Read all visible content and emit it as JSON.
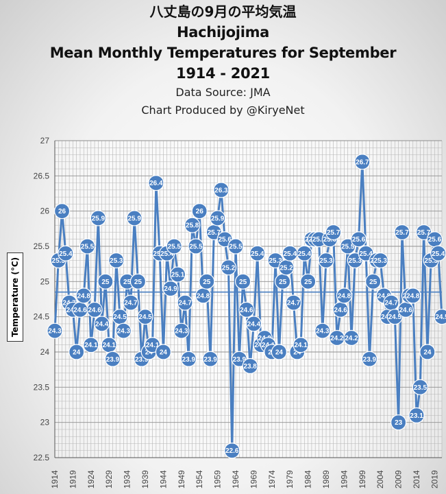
{
  "titles": {
    "japanese": "八丈島の9月の平均気温",
    "station": "Hachijojima",
    "main": "Mean Monthly Temperatures  for September",
    "years": "1914 - 2021",
    "source": "Data Source: JMA",
    "credit": "Chart Produced by @KiryeNet"
  },
  "colors": {
    "series": "#4a7fc1",
    "grid": "#b5b5b5",
    "axis": "#555555"
  },
  "chart_data": {
    "type": "line",
    "title": "Hachijojima Mean Monthly Temperatures for September",
    "ylabel": "Temperature (°C)",
    "xlabel": "",
    "ylim": [
      22.5,
      27
    ],
    "yticks": [
      "22.5",
      "23",
      "23.5",
      "24",
      "24.5",
      "25",
      "25.5",
      "26",
      "26.5",
      "27"
    ],
    "xtick_labels": [
      "1914",
      "1919",
      "1924",
      "1929",
      "1934",
      "1939",
      "1944",
      "1949",
      "1954",
      "1959",
      "1964",
      "1969",
      "1974",
      "1979",
      "1984",
      "1989",
      "1994",
      "1999",
      "2004",
      "2009",
      "2014",
      "2019"
    ],
    "grid": true,
    "trend_line": 24.85,
    "x": [
      1914,
      1915,
      1916,
      1917,
      1918,
      1919,
      1920,
      1921,
      1922,
      1923,
      1924,
      1925,
      1926,
      1927,
      1928,
      1929,
      1930,
      1931,
      1932,
      1933,
      1934,
      1935,
      1936,
      1937,
      1938,
      1939,
      1940,
      1941,
      1942,
      1943,
      1944,
      1945,
      1946,
      1947,
      1948,
      1949,
      1950,
      1951,
      1952,
      1953,
      1954,
      1955,
      1956,
      1957,
      1958,
      1959,
      1960,
      1961,
      1962,
      1963,
      1964,
      1965,
      1966,
      1967,
      1968,
      1969,
      1970,
      1971,
      1972,
      1973,
      1974,
      1975,
      1976,
      1977,
      1978,
      1979,
      1980,
      1981,
      1982,
      1983,
      1984,
      1985,
      1986,
      1987,
      1988,
      1989,
      1990,
      1991,
      1992,
      1993,
      1994,
      1995,
      1996,
      1997,
      1998,
      1999,
      2000,
      2001,
      2002,
      2003,
      2004,
      2005,
      2006,
      2007,
      2008,
      2009,
      2010,
      2011,
      2012,
      2013,
      2014,
      2015,
      2016,
      2017,
      2018,
      2019,
      2020,
      2021
    ],
    "series": [
      {
        "values": [
          24.3,
          25.3,
          26.0,
          25.4,
          24.7,
          24.6,
          24.0,
          24.6,
          24.8,
          25.5,
          24.1,
          24.6,
          25.9,
          24.4,
          25.0,
          24.1,
          23.9,
          25.3,
          24.5,
          24.3,
          25.0,
          24.7,
          25.9,
          25.0,
          23.9,
          24.5,
          24.0,
          24.1,
          26.4,
          25.4,
          24.0,
          25.4,
          24.9,
          25.5,
          25.1,
          24.3,
          24.7,
          23.9,
          25.8,
          25.5,
          26.0,
          24.8,
          25.0,
          23.9,
          25.7,
          25.9,
          26.3,
          25.6,
          25.2,
          22.6,
          25.5,
          23.9,
          25.0,
          24.6,
          23.8,
          24.4,
          25.4,
          24.1,
          24.2,
          24.1,
          24.0,
          25.3,
          24.0,
          25.0,
          25.2,
          25.4,
          24.7,
          24.0,
          24.1,
          25.4,
          25.0,
          25.6,
          25.6,
          25.6,
          24.3,
          25.3,
          25.6,
          25.7,
          24.2,
          24.6,
          24.8,
          25.5,
          24.2,
          25.3,
          25.6,
          26.7,
          25.4,
          23.9,
          25.0,
          25.3,
          25.3,
          24.8,
          24.5,
          24.7,
          24.5,
          23.0,
          25.7,
          24.6,
          24.8,
          24.8,
          23.1,
          23.5,
          25.7,
          24.0,
          25.3,
          25.6,
          25.4,
          24.5
        ]
      }
    ]
  }
}
